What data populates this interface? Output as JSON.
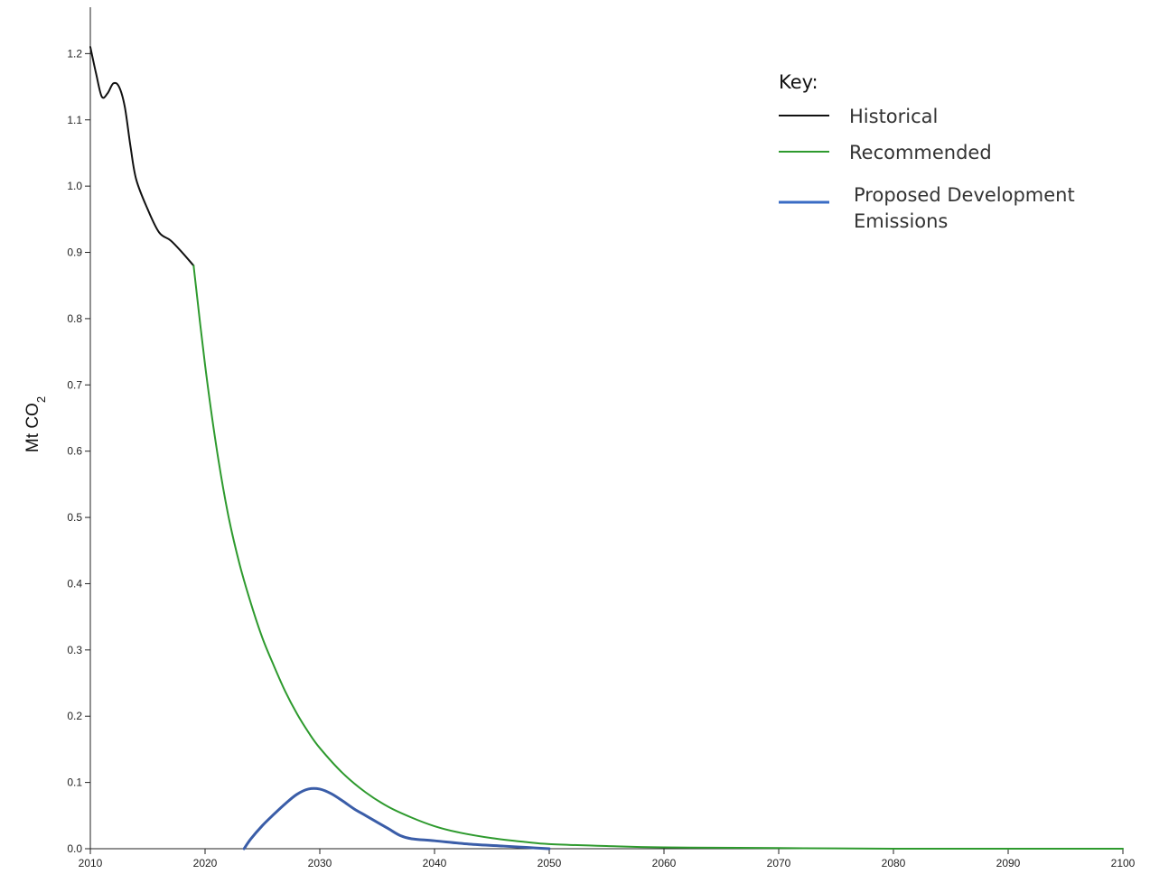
{
  "chart_data": {
    "type": "line",
    "title": "",
    "xlabel": "",
    "ylabel": "Mt CO",
    "ylabel_subscript": "2",
    "xlim": [
      2010,
      2100
    ],
    "ylim": [
      0.0,
      1.27
    ],
    "grid": false,
    "legend_placement": "top-right",
    "x_ticks": [
      2010,
      2020,
      2030,
      2040,
      2050,
      2060,
      2070,
      2080,
      2090,
      2100
    ],
    "y_ticks": [
      0.0,
      0.1,
      0.2,
      0.3,
      0.4,
      0.5,
      0.6,
      0.7,
      0.8,
      0.9,
      1.0,
      1.1,
      1.2
    ],
    "legend": {
      "title": "Key:",
      "entries": [
        {
          "label_lines": [
            "Historical"
          ],
          "color": "#111111"
        },
        {
          "label_lines": [
            "Recommended"
          ],
          "color": "#2e9a2e"
        },
        {
          "label_lines": [
            "Proposed Development",
            "Emissions"
          ],
          "color": "#3a6cc4"
        }
      ]
    },
    "series": [
      {
        "name": "Historical",
        "color": "#111111",
        "points": [
          [
            2010.0,
            1.21
          ],
          [
            2010.5,
            1.17
          ],
          [
            2011.0,
            1.135
          ],
          [
            2011.5,
            1.14
          ],
          [
            2012.0,
            1.155
          ],
          [
            2012.5,
            1.15
          ],
          [
            2013.0,
            1.12
          ],
          [
            2013.5,
            1.06
          ],
          [
            2014.0,
            1.01
          ],
          [
            2015.0,
            0.965
          ],
          [
            2016.0,
            0.93
          ],
          [
            2017.0,
            0.918
          ],
          [
            2018.0,
            0.9
          ],
          [
            2019.0,
            0.88
          ]
        ]
      },
      {
        "name": "Recommended",
        "color": "#2e9a2e",
        "points": [
          [
            2019.0,
            0.88
          ],
          [
            2020.0,
            0.73
          ],
          [
            2021.0,
            0.605
          ],
          [
            2022.0,
            0.505
          ],
          [
            2023.0,
            0.43
          ],
          [
            2024.0,
            0.37
          ],
          [
            2025.0,
            0.318
          ],
          [
            2026.0,
            0.276
          ],
          [
            2027.0,
            0.237
          ],
          [
            2028.0,
            0.204
          ],
          [
            2029.0,
            0.176
          ],
          [
            2030.0,
            0.152
          ],
          [
            2032.0,
            0.114
          ],
          [
            2034.0,
            0.085
          ],
          [
            2036.0,
            0.063
          ],
          [
            2038.0,
            0.047
          ],
          [
            2040.0,
            0.034
          ],
          [
            2042.0,
            0.025
          ],
          [
            2045.0,
            0.016
          ],
          [
            2048.0,
            0.01
          ],
          [
            2050.0,
            0.007
          ],
          [
            2055.0,
            0.004
          ],
          [
            2060.0,
            0.002
          ],
          [
            2070.0,
            0.001
          ],
          [
            2080.0,
            0.0
          ],
          [
            2090.0,
            0.0
          ],
          [
            2100.0,
            0.0
          ]
        ]
      },
      {
        "name": "Proposed Development Emissions",
        "color": "#3a5da8",
        "points": [
          [
            2023.4,
            0.0
          ],
          [
            2024.0,
            0.015
          ],
          [
            2025.0,
            0.035
          ],
          [
            2026.0,
            0.052
          ],
          [
            2027.0,
            0.068
          ],
          [
            2028.0,
            0.082
          ],
          [
            2029.0,
            0.09
          ],
          [
            2030.0,
            0.09
          ],
          [
            2031.0,
            0.083
          ],
          [
            2032.0,
            0.072
          ],
          [
            2033.0,
            0.06
          ],
          [
            2034.0,
            0.05
          ],
          [
            2035.0,
            0.04
          ],
          [
            2036.0,
            0.03
          ],
          [
            2037.0,
            0.02
          ],
          [
            2038.0,
            0.015
          ],
          [
            2040.0,
            0.012
          ],
          [
            2043.0,
            0.007
          ],
          [
            2046.0,
            0.004
          ],
          [
            2048.0,
            0.002
          ],
          [
            2050.0,
            0.0
          ]
        ]
      }
    ]
  }
}
